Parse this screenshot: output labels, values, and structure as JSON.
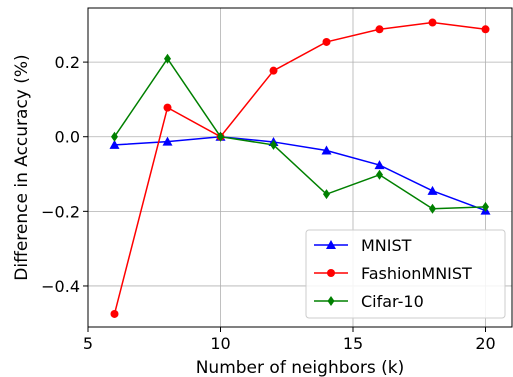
{
  "chart_data": {
    "type": "line",
    "title": "",
    "xlabel": "Number of neighbors (k)",
    "ylabel": "Difference in Accuracy (%)",
    "xlim": [
      5,
      21
    ],
    "ylim": [
      -0.51,
      0.345
    ],
    "grid": true,
    "legend_position": "lower-right",
    "x_ticks": [
      5,
      10,
      15,
      20
    ],
    "x_tick_labels": [
      "5",
      "10",
      "15",
      "20"
    ],
    "y_ticks": [
      -0.4,
      -0.2,
      0.0,
      0.2
    ],
    "y_tick_labels": [
      "−0.4",
      "−0.2",
      "0.0",
      "0.2"
    ],
    "x": [
      6,
      8,
      10,
      12,
      14,
      16,
      18,
      20
    ],
    "series": [
      {
        "name": "MNIST",
        "color": "#0000ff",
        "marker": "triangle",
        "values": [
          -0.022,
          -0.013,
          0.0,
          -0.014,
          -0.037,
          -0.076,
          -0.145,
          -0.198
        ]
      },
      {
        "name": "FashionMNIST",
        "color": "#ff0000",
        "marker": "circle",
        "values": [
          -0.475,
          0.078,
          0.0,
          0.177,
          0.254,
          0.288,
          0.306,
          0.288
        ]
      },
      {
        "name": "Cifar-10",
        "color": "#008000",
        "marker": "diamond",
        "values": [
          0.0,
          0.209,
          0.0,
          -0.022,
          -0.154,
          -0.102,
          -0.193,
          -0.188
        ]
      }
    ]
  }
}
